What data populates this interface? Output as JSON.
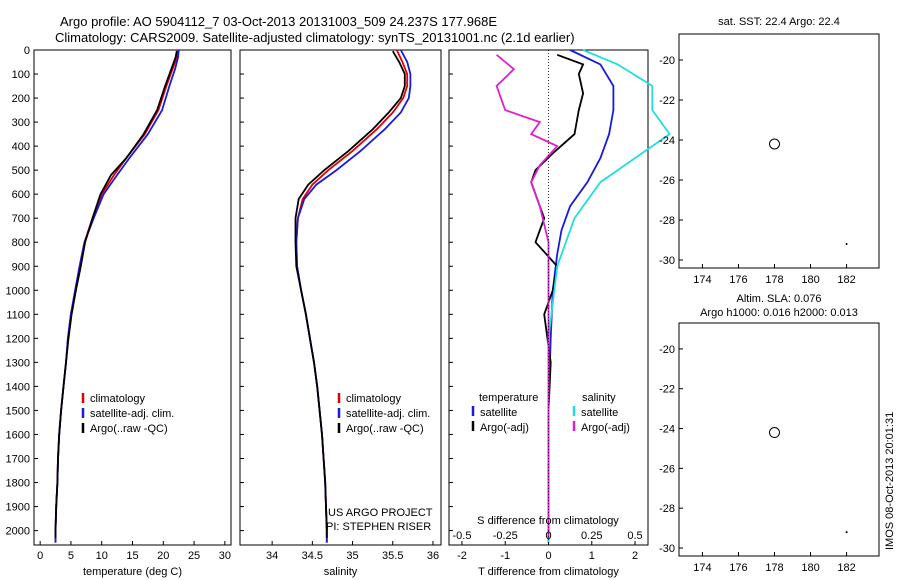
{
  "header": {
    "title_line1": "Argo profile: AO 5904112_7 03-Oct-2013 20131003_509 24.237S 177.968E",
    "title_line2": "Climatology: CARS2009. Satellite-adjusted climatology: synTS_20131001.nc (2.1d earlier)"
  },
  "colors": {
    "climatology": "#e00000",
    "satellite": "#1a1adc",
    "argo": "#000000",
    "sat_diff_salinity": "#22dde0",
    "argo_diff_salinity": "#e020d0"
  },
  "chart_data": [
    {
      "id": "temperature",
      "type": "line",
      "xlabel": "temperature (deg C)",
      "ylabel": "",
      "xlim": [
        -1,
        31
      ],
      "ylim": [
        2060,
        0
      ],
      "xticks": [
        0,
        5,
        10,
        15,
        20,
        25,
        30
      ],
      "yticks": [
        0,
        100,
        200,
        300,
        400,
        500,
        600,
        700,
        800,
        900,
        1000,
        1100,
        1200,
        1300,
        1400,
        1500,
        1600,
        1700,
        1800,
        1900,
        2000
      ],
      "legend": [
        "climatology",
        "satellite-adj. clim.",
        "Argo(..raw -QC)"
      ],
      "series": [
        {
          "name": "climatology",
          "color": "#e00000",
          "points": [
            [
              22.3,
              0
            ],
            [
              22.2,
              30
            ],
            [
              21.5,
              80
            ],
            [
              20.5,
              150
            ],
            [
              19.2,
              250
            ],
            [
              17,
              350
            ],
            [
              14,
              450
            ],
            [
              12,
              520
            ],
            [
              10,
              600
            ],
            [
              8.5,
              700
            ],
            [
              7.2,
              800
            ],
            [
              6.4,
              900
            ],
            [
              5.7,
              1000
            ],
            [
              5,
              1100
            ],
            [
              4.5,
              1200
            ],
            [
              4.2,
              1300
            ],
            [
              3.8,
              1400
            ],
            [
              3.4,
              1500
            ],
            [
              3.1,
              1600
            ],
            [
              2.9,
              1700
            ],
            [
              2.8,
              1800
            ],
            [
              2.6,
              1900
            ],
            [
              2.5,
              2000
            ],
            [
              2.5,
              2050
            ]
          ]
        },
        {
          "name": "satellite-adj. clim.",
          "color": "#1a1adc",
          "points": [
            [
              22.5,
              0
            ],
            [
              22.4,
              30
            ],
            [
              21.9,
              80
            ],
            [
              21,
              150
            ],
            [
              19.8,
              250
            ],
            [
              17.5,
              350
            ],
            [
              14.5,
              450
            ],
            [
              12.5,
              520
            ],
            [
              10.3,
              600
            ],
            [
              8.7,
              700
            ],
            [
              7.2,
              800
            ],
            [
              6.4,
              900
            ],
            [
              5.7,
              1000
            ],
            [
              5,
              1100
            ],
            [
              4.5,
              1200
            ],
            [
              4.2,
              1300
            ],
            [
              3.8,
              1400
            ],
            [
              3.4,
              1500
            ],
            [
              3.1,
              1600
            ],
            [
              2.9,
              1700
            ],
            [
              2.8,
              1800
            ],
            [
              2.6,
              1900
            ],
            [
              2.5,
              2000
            ],
            [
              2.5,
              2050
            ]
          ]
        },
        {
          "name": "Argo(..raw -QC)",
          "color": "#000000",
          "points": [
            [
              22.2,
              5
            ],
            [
              22,
              30
            ],
            [
              21.3,
              80
            ],
            [
              20.3,
              150
            ],
            [
              19,
              250
            ],
            [
              16.8,
              350
            ],
            [
              14,
              450
            ],
            [
              11.5,
              520
            ],
            [
              9.8,
              600
            ],
            [
              8.5,
              700
            ],
            [
              7.3,
              800
            ],
            [
              6.6,
              900
            ],
            [
              5.8,
              1000
            ],
            [
              5.1,
              1100
            ],
            [
              4.6,
              1200
            ],
            [
              4.2,
              1300
            ],
            [
              3.8,
              1400
            ],
            [
              3.4,
              1500
            ],
            [
              3.1,
              1600
            ],
            [
              2.9,
              1700
            ],
            [
              2.8,
              1800
            ],
            [
              2.6,
              1900
            ],
            [
              2.5,
              2000
            ],
            [
              2.5,
              2030
            ]
          ]
        }
      ]
    },
    {
      "id": "salinity",
      "type": "line",
      "xlabel": "salinity",
      "ylabel": "",
      "xlim": [
        33.6,
        36.1
      ],
      "ylim": [
        2060,
        0
      ],
      "xticks": [
        34,
        34.5,
        35,
        35.5,
        36
      ],
      "legend": [
        "climatology",
        "satellite-adj. clim.",
        "Argo(..raw -QC)"
      ],
      "series": [
        {
          "name": "climatology",
          "color": "#e00000",
          "points": [
            [
              35.55,
              0
            ],
            [
              35.62,
              50
            ],
            [
              35.68,
              100
            ],
            [
              35.68,
              150
            ],
            [
              35.63,
              200
            ],
            [
              35.5,
              260
            ],
            [
              35.3,
              330
            ],
            [
              35.0,
              420
            ],
            [
              34.7,
              500
            ],
            [
              34.5,
              560
            ],
            [
              34.38,
              620
            ],
            [
              34.32,
              700
            ],
            [
              34.3,
              800
            ],
            [
              34.31,
              900
            ],
            [
              34.36,
              1000
            ],
            [
              34.42,
              1100
            ],
            [
              34.47,
              1200
            ],
            [
              34.52,
              1300
            ],
            [
              34.56,
              1400
            ],
            [
              34.59,
              1500
            ],
            [
              34.62,
              1600
            ],
            [
              34.64,
              1700
            ],
            [
              34.66,
              1800
            ],
            [
              34.67,
              1900
            ],
            [
              34.68,
              2000
            ],
            [
              34.68,
              2050
            ]
          ]
        },
        {
          "name": "satellite-adj. clim.",
          "color": "#1a1adc",
          "points": [
            [
              35.6,
              0
            ],
            [
              35.68,
              50
            ],
            [
              35.72,
              100
            ],
            [
              35.72,
              150
            ],
            [
              35.7,
              200
            ],
            [
              35.6,
              260
            ],
            [
              35.4,
              330
            ],
            [
              35.1,
              420
            ],
            [
              34.8,
              500
            ],
            [
              34.55,
              560
            ],
            [
              34.4,
              620
            ],
            [
              34.32,
              700
            ],
            [
              34.3,
              800
            ],
            [
              34.31,
              900
            ],
            [
              34.36,
              1000
            ],
            [
              34.42,
              1100
            ],
            [
              34.47,
              1200
            ],
            [
              34.52,
              1300
            ],
            [
              34.56,
              1400
            ],
            [
              34.59,
              1500
            ],
            [
              34.62,
              1600
            ],
            [
              34.64,
              1700
            ],
            [
              34.66,
              1800
            ],
            [
              34.67,
              1900
            ],
            [
              34.68,
              2000
            ],
            [
              34.68,
              2050
            ]
          ]
        },
        {
          "name": "Argo(..raw -QC)",
          "color": "#000000",
          "points": [
            [
              35.5,
              5
            ],
            [
              35.58,
              50
            ],
            [
              35.65,
              100
            ],
            [
              35.65,
              150
            ],
            [
              35.6,
              200
            ],
            [
              35.45,
              260
            ],
            [
              35.25,
              330
            ],
            [
              34.95,
              420
            ],
            [
              34.65,
              500
            ],
            [
              34.45,
              560
            ],
            [
              34.33,
              620
            ],
            [
              34.29,
              700
            ],
            [
              34.29,
              800
            ],
            [
              34.3,
              900
            ],
            [
              34.36,
              1000
            ],
            [
              34.42,
              1100
            ],
            [
              34.47,
              1200
            ],
            [
              34.52,
              1300
            ],
            [
              34.56,
              1400
            ],
            [
              34.59,
              1500
            ],
            [
              34.62,
              1600
            ],
            [
              34.64,
              1700
            ],
            [
              34.66,
              1800
            ],
            [
              34.67,
              1900
            ],
            [
              34.68,
              2000
            ],
            [
              34.68,
              2030
            ]
          ]
        }
      ]
    },
    {
      "id": "difference",
      "type": "line",
      "xlabel": "T difference from climatology",
      "xlabel_top": "S difference from climatology",
      "xlim": [
        -2.3,
        2.3
      ],
      "ylim": [
        2060,
        0
      ],
      "xticks": [
        -2,
        -1,
        0,
        1,
        2
      ],
      "xticks_s": [
        "-0.5",
        "-0.25",
        "0",
        "0.25",
        "0.5"
      ],
      "legend_headers": [
        "temperature",
        "salinity"
      ],
      "legend_t": [
        "satellite",
        "Argo(-adj)"
      ],
      "legend_s": [
        "satellite",
        "Argo(-adj)"
      ],
      "series": [
        {
          "name": "satellite",
          "group": "temperature",
          "color": "#1a1adc",
          "points": [
            [
              0.5,
              0
            ],
            [
              1.2,
              60
            ],
            [
              1.5,
              150
            ],
            [
              1.5,
              250
            ],
            [
              1.4,
              350
            ],
            [
              1.2,
              450
            ],
            [
              0.9,
              550
            ],
            [
              0.5,
              650
            ],
            [
              0.3,
              750
            ],
            [
              0.2,
              850
            ],
            [
              0.1,
              1000
            ],
            [
              0.05,
              1200
            ],
            [
              0,
              1500
            ],
            [
              0,
              2050
            ]
          ]
        },
        {
          "name": "Argo(-adj)",
          "group": "temperature",
          "color": "#000000",
          "points": [
            [
              0.2,
              20
            ],
            [
              0.8,
              60
            ],
            [
              0.7,
              100
            ],
            [
              0.8,
              180
            ],
            [
              0.7,
              250
            ],
            [
              0.6,
              350
            ],
            [
              0.1,
              430
            ],
            [
              -0.3,
              500
            ],
            [
              -0.4,
              550
            ],
            [
              -0.2,
              650
            ],
            [
              -0.1,
              700
            ],
            [
              -0.3,
              800
            ],
            [
              0.2,
              900
            ],
            [
              0.1,
              1000
            ],
            [
              -0.1,
              1100
            ],
            [
              0.05,
              1300
            ],
            [
              0,
              1500
            ],
            [
              0,
              2030
            ]
          ]
        },
        {
          "name": "satellite",
          "group": "salinity",
          "color": "#22dde0",
          "points": [
            [
              0.2,
              0
            ],
            [
              0.4,
              60
            ],
            [
              0.6,
              150
            ],
            [
              0.6,
              250
            ],
            [
              0.7,
              350
            ],
            [
              0.5,
              450
            ],
            [
              0.3,
              550
            ],
            [
              0.15,
              700
            ],
            [
              0.05,
              900
            ],
            [
              0,
              1200
            ],
            [
              0,
              2050
            ]
          ]
        },
        {
          "name": "Argo(-adj)",
          "group": "salinity",
          "color": "#e020d0",
          "points": [
            [
              -0.3,
              20
            ],
            [
              -0.2,
              80
            ],
            [
              -0.3,
              150
            ],
            [
              -0.25,
              250
            ],
            [
              -0.05,
              300
            ],
            [
              -0.1,
              350
            ],
            [
              0.05,
              400
            ],
            [
              -0.05,
              480
            ],
            [
              -0.1,
              550
            ],
            [
              -0.05,
              650
            ],
            [
              0,
              800
            ],
            [
              0,
              1200
            ],
            [
              0,
              2030
            ]
          ]
        }
      ]
    },
    {
      "id": "sst_map",
      "type": "heatmap",
      "title": "sat. SST: 22.4 Argo: 22.4",
      "xlim": [
        172.7,
        183.8
      ],
      "ylim": [
        -30.4,
        -18.7
      ],
      "xticks": [
        174,
        176,
        178,
        180,
        182
      ],
      "yticks": [
        -20,
        -22,
        -24,
        -26,
        -28,
        -30
      ],
      "argo_position": [
        178,
        -24.2
      ]
    },
    {
      "id": "sla_map",
      "type": "heatmap",
      "title_line1": "Altim. SLA: 0.076",
      "title_line2": "Argo h1000: 0.016 h2000: 0.013",
      "xlim": [
        172.7,
        183.8
      ],
      "ylim": [
        -30.4,
        -18.7
      ],
      "xticks": [
        174,
        176,
        178,
        180,
        182
      ],
      "yticks": [
        -20,
        -22,
        -24,
        -26,
        -28,
        -30
      ],
      "argo_position": [
        178,
        -24.2
      ]
    }
  ],
  "footer": {
    "project_line1": "US ARGO PROJECT",
    "project_line2": "PI: STEPHEN RISER",
    "stamp": "IMOS 08-Oct-2013 20:01:31"
  }
}
